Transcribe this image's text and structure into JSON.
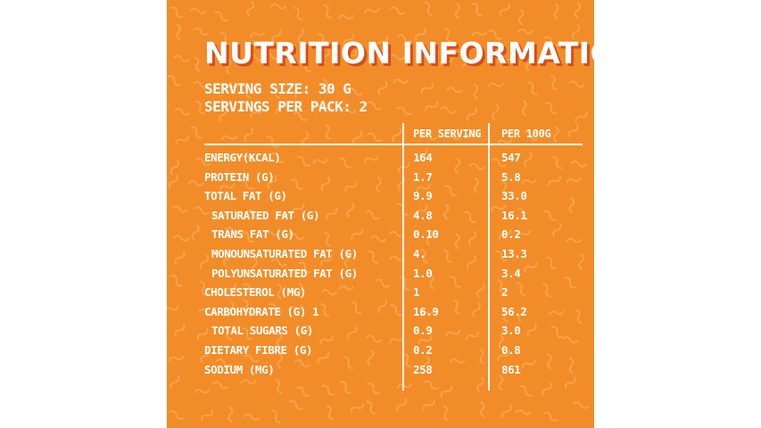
{
  "title": "NUTRITION INFORMATION",
  "serving_size": "SERVING SIZE: 30 G",
  "servings_per_pack": "SERVINGS PER PACK: 2",
  "columns": [
    "PER SERVING",
    "PER 100G"
  ],
  "colors": {
    "panel": "#f28c28",
    "pattern": "#f7a34a",
    "text": "#ffffff",
    "title_shadow": "#d64d1c"
  },
  "rows": [
    {
      "name": "ENERGY(KCAL)",
      "per_serving": "164",
      "per_100g": "547",
      "indent": false
    },
    {
      "name": "PROTEIN (G)",
      "per_serving": "1.7",
      "per_100g": "5.8",
      "indent": false
    },
    {
      "name": "TOTAL FAT (G)",
      "per_serving": "9.9",
      "per_100g": "33.0",
      "indent": false
    },
    {
      "name": "SATURATED FAT (G)",
      "per_serving": "4.8",
      "per_100g": "16.1",
      "indent": true
    },
    {
      "name": "TRANS FAT (G)",
      "per_serving": "0.10",
      "per_100g": "0.2",
      "indent": true
    },
    {
      "name": "MONOUNSATURATED FAT (G)",
      "per_serving": "4.",
      "per_100g": "13.3",
      "indent": true
    },
    {
      "name": "POLYUNSATURATED FAT (G)",
      "per_serving": "1.0",
      "per_100g": "3.4",
      "indent": true
    },
    {
      "name": "CHOLESTEROL (MG)",
      "per_serving": "1",
      "per_100g": "2",
      "indent": false
    },
    {
      "name": "CARBOHYDRATE (G) 1",
      "per_serving": "16.9",
      "per_100g": "56.2",
      "indent": false
    },
    {
      "name": "TOTAL SUGARS (G)",
      "per_serving": "0.9",
      "per_100g": "3.0",
      "indent": true
    },
    {
      "name": "DIETARY FIBRE (G)",
      "per_serving": "0.2",
      "per_100g": "0.8",
      "indent": false
    },
    {
      "name": "SODIUM (MG)",
      "per_serving": "258",
      "per_100g": "861",
      "indent": false
    }
  ]
}
